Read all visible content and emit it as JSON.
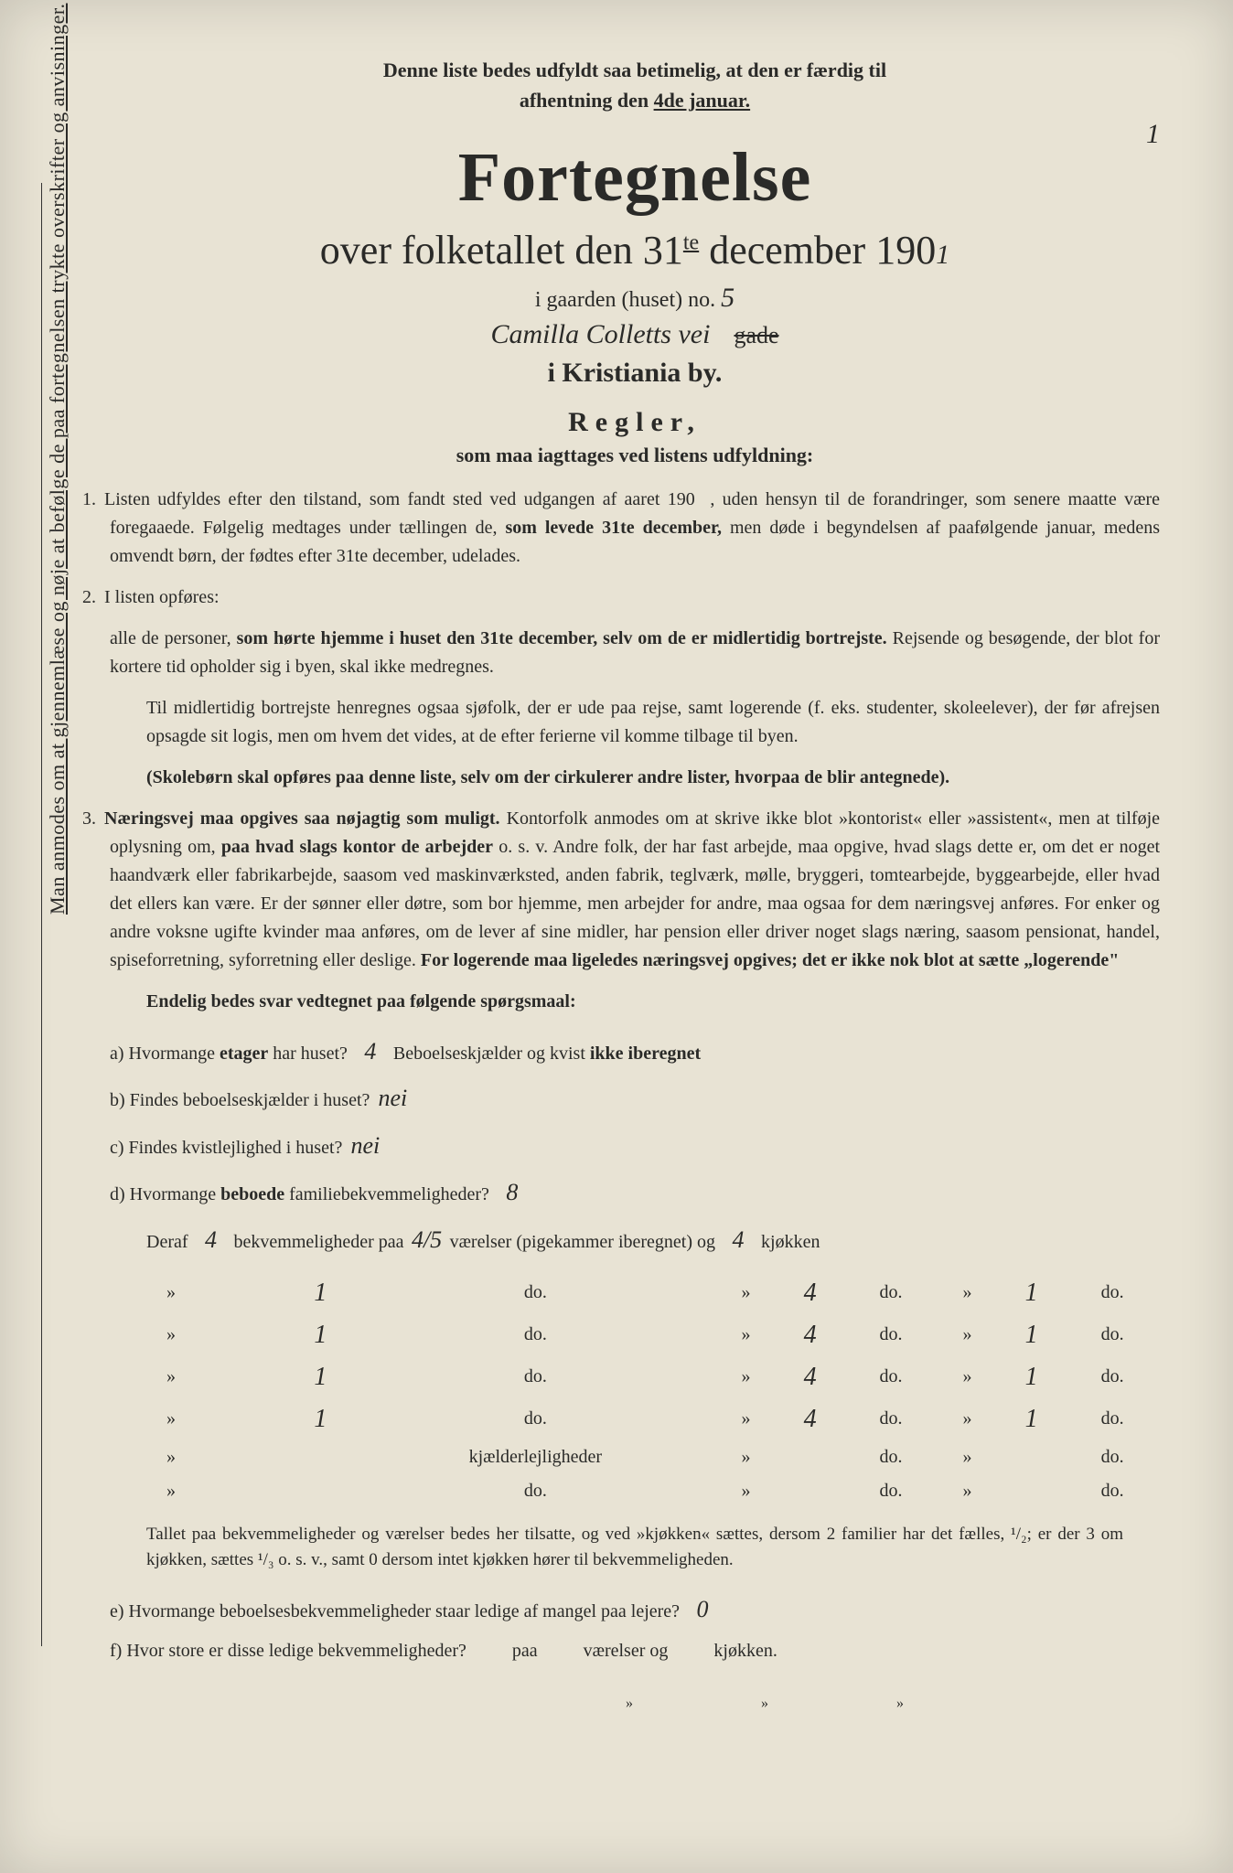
{
  "side_note": "Man anmodes om at gjennemlæse og nøje at befølge de paa fortegnelsen trykte overskrifter og anvisninger.",
  "top_note_line1": "Denne liste bedes udfyldt saa betimelig, at den er færdig til",
  "top_note_line2_a": "afhentning den ",
  "top_note_line2_b": "4de januar.",
  "page_number": "1",
  "title": "Fortegnelse",
  "subtitle_a": "over folketallet den 31",
  "subtitle_sup": "te",
  "subtitle_b": " december 190",
  "year_hw": "1",
  "gaarden_label": "i gaarden (huset) no.",
  "gaarden_no": "5",
  "street_hw": "Camilla Colletts vei",
  "street_print": "gade",
  "city": "i Kristiania by.",
  "regler_head": "Regler,",
  "regler_sub": "som maa iagttages ved listens udfyldning:",
  "rule1": "Listen udfyldes efter den tilstand, som fandt sted ved udgangen af aaret 190   , uden hensyn til de forandringer, som senere maatte være foregaaede. Følgelig medtages under tællingen de, som levede 31te december, men døde i begyndelsen af paafølgende januar, medens omvendt børn, der fødtes efter 31te december, udelades.",
  "rule2a": "I listen opføres:",
  "rule2b": "alle de personer, som hørte hjemme i huset den 31te december, selv om de er midlertidig bortrejste. Rejsende og besøgende, der blot for kortere tid opholder sig i byen, skal ikke medregnes.",
  "rule2c": "Til midlertidig bortrejste henregnes ogsaa sjøfolk, der er ude paa rejse, samt logerende (f. eks. studenter, skoleelever), der før afrejsen opsagde sit logis, men om hvem det vides, at de efter ferierne vil komme tilbage til byen.",
  "rule2d": "(Skolebørn skal opføres paa denne liste, selv om der cirkulerer andre lister, hvorpaa de blir antegnede).",
  "rule3": "Næringsvej maa opgives saa nøjagtig som muligt. Kontorfolk anmodes om at skrive ikke blot »kontorist« eller »assistent«, men at tilføje oplysning om, paa hvad slags kontor de arbejder o. s. v. Andre folk, der har fast arbejde, maa opgive, hvad slags dette er, om det er noget haandværk eller fabrikarbejde, saasom ved maskinværksted, anden fabrik, teglværk, mølle, bryggeri, tomtearbejde, byggearbejde, eller hvad det ellers kan være. Er der sønner eller døtre, som bor hjemme, men arbejder for andre, maa ogsaa for dem næringsvej anføres. For enker og andre voksne ugifte kvinder maa anføres, om de lever af sine midler, har pension eller driver noget slags næring, saasom pensionat, handel, spiseforretning, syforretning eller deslige. For logerende maa ligeledes næringsvej opgives; det er ikke nok blot at sætte „logerende\"",
  "endelig": "Endelig bedes svar vedtegnet paa følgende spørgsmaal:",
  "qa_label": "a) Hvormange etager har huset?",
  "qa_hw": "4",
  "qa_tail": "Beboelseskjælder og kvist ikke iberegnet",
  "qb_label": "b) Findes beboelseskjælder i huset?",
  "qb_hw": "nei",
  "qc_label": "c) Findes kvistlejlighed i huset?",
  "qc_hw": "nei",
  "qd_label": "d) Hvormange beboede familiebekvemmeligheder?",
  "qd_hw": "8",
  "deraf_label_a": "Deraf",
  "deraf_hw1": "4",
  "deraf_label_b": "bekvemmeligheder paa",
  "deraf_hw2": "4/5",
  "deraf_label_c": "værelser (pigekammer iberegnet) og",
  "deraf_hw3": "4",
  "deraf_label_d": "kjøkken",
  "room_rows": [
    {
      "a": "1",
      "b": "4",
      "c": "1"
    },
    {
      "a": "1",
      "b": "4",
      "c": "1"
    },
    {
      "a": "1",
      "b": "4",
      "c": "1"
    },
    {
      "a": "1",
      "b": "4",
      "c": "1"
    }
  ],
  "kjaelder_label": "kjælderlejligheder",
  "do": "do.",
  "tallet": "Tallet paa bekvemmeligheder og værelser bedes her tilsatte, og ved »kjøkken« sættes, dersom 2 familier har det fælles, ¹/₂; er der 3 om kjøkken, sættes ¹/₃ o. s. v., samt 0 dersom intet kjøkken hører til bekvemmeligheden.",
  "qe_label": "e) Hvormange beboelsesbekvemmeligheder staar ledige af mangel paa lejere?",
  "qe_hw": "0",
  "qf_label": "f) Hvor store er disse ledige bekvemmeligheder?",
  "qf_paa": "paa",
  "qf_vaer": "værelser og",
  "qf_kj": "kjøkken."
}
